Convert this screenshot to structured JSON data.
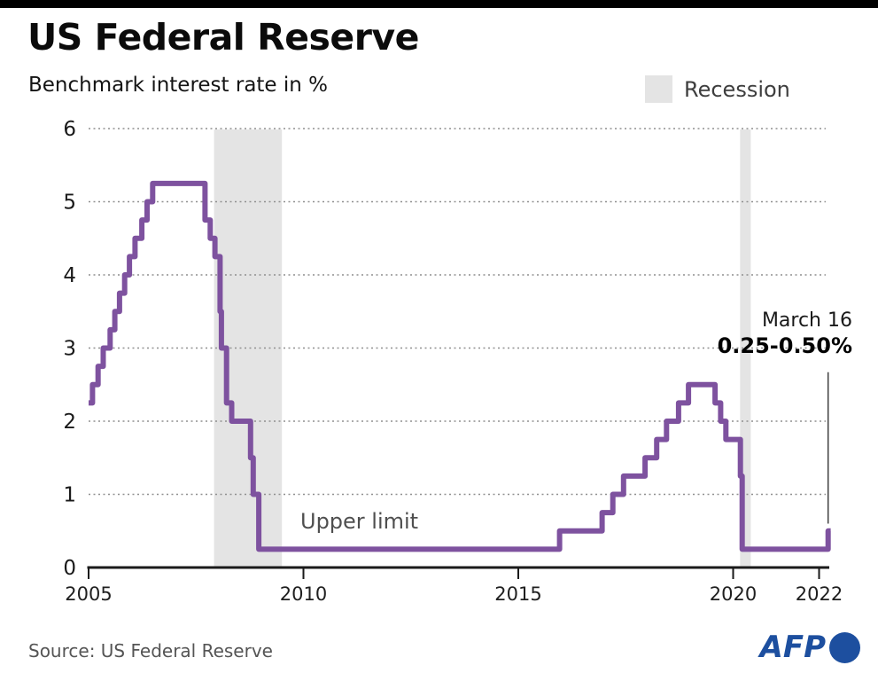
{
  "chart_data": {
    "type": "line",
    "step": "after",
    "title": "US Federal Reserve",
    "subtitle": "Benchmark interest rate in %",
    "line_label": "Upper limit",
    "line_color": "#7e529f",
    "legend": {
      "recession_label": "Recession",
      "recession_color": "#e4e4e4"
    },
    "xlim": [
      2005,
      2022.3
    ],
    "ylim": [
      0,
      6
    ],
    "xticks": [
      2005,
      2010,
      2015,
      2020,
      2022
    ],
    "yticks": [
      0,
      1,
      2,
      3,
      4,
      5,
      6
    ],
    "grid": "horizontal-dotted",
    "legend_position": "top-right",
    "recession_bands": [
      [
        2007.92,
        2009.5
      ],
      [
        2020.16,
        2020.41
      ]
    ],
    "series": [
      {
        "name": "Upper limit",
        "points": [
          [
            2005.0,
            2.25
          ],
          [
            2005.09,
            2.5
          ],
          [
            2005.22,
            2.75
          ],
          [
            2005.34,
            3.0
          ],
          [
            2005.5,
            3.25
          ],
          [
            2005.61,
            3.5
          ],
          [
            2005.72,
            3.75
          ],
          [
            2005.84,
            4.0
          ],
          [
            2005.95,
            4.25
          ],
          [
            2006.08,
            4.5
          ],
          [
            2006.24,
            4.75
          ],
          [
            2006.36,
            5.0
          ],
          [
            2006.49,
            5.25
          ],
          [
            2007.71,
            4.75
          ],
          [
            2007.83,
            4.5
          ],
          [
            2007.94,
            4.25
          ],
          [
            2008.06,
            3.5
          ],
          [
            2008.09,
            3.0
          ],
          [
            2008.21,
            2.25
          ],
          [
            2008.33,
            2.0
          ],
          [
            2008.77,
            1.5
          ],
          [
            2008.83,
            1.0
          ],
          [
            2008.96,
            0.25
          ],
          [
            2015.96,
            0.5
          ],
          [
            2016.95,
            0.75
          ],
          [
            2017.2,
            1.0
          ],
          [
            2017.45,
            1.25
          ],
          [
            2017.95,
            1.5
          ],
          [
            2018.22,
            1.75
          ],
          [
            2018.45,
            2.0
          ],
          [
            2018.73,
            2.25
          ],
          [
            2018.96,
            2.5
          ],
          [
            2019.58,
            2.25
          ],
          [
            2019.71,
            2.0
          ],
          [
            2019.83,
            1.75
          ],
          [
            2020.17,
            1.25
          ],
          [
            2020.21,
            0.25
          ],
          [
            2022.21,
            0.5
          ]
        ]
      }
    ],
    "series_end_x": 2022.27,
    "callout": {
      "line1": "March 16",
      "line2": "0.25-0.50%",
      "pointer_year": 2022.21,
      "pointer_from_value": 2.67,
      "pointer_to_value": 0.6
    }
  },
  "footer": {
    "source": "Source: US Federal Reserve",
    "brand": "AFP"
  }
}
